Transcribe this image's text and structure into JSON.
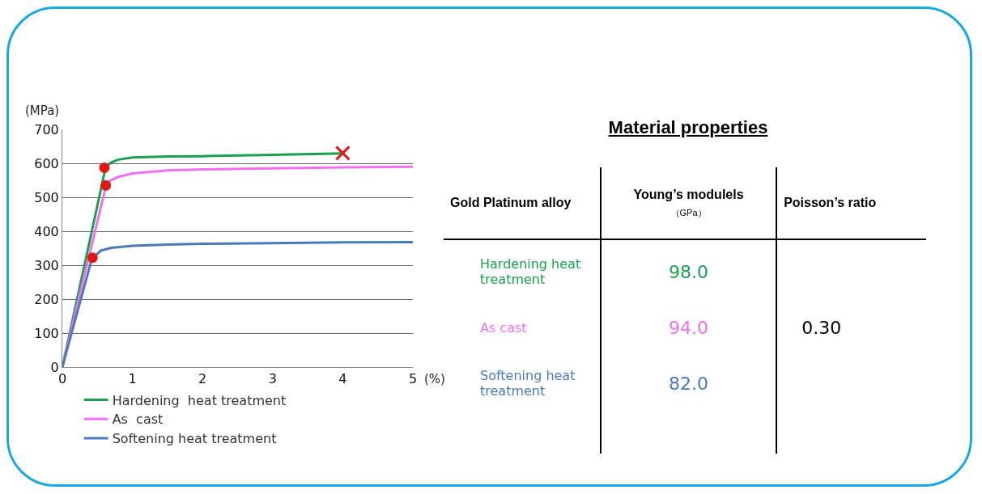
{
  "chart_data": [
    {
      "type": "line",
      "xlabel": "(%)",
      "ylabel": "(MPa)",
      "xlim": [
        0,
        5
      ],
      "xticks": [
        0,
        1,
        2,
        3,
        4,
        5
      ],
      "ylim": [
        0,
        700
      ],
      "yticks": [
        0,
        100,
        200,
        300,
        400,
        500,
        600,
        700
      ],
      "grid": "y",
      "legend": "bottom",
      "marker": "none",
      "line_style": "solid",
      "series": [
        {
          "name": "Hardening  heat treatment",
          "color": "#1aa050",
          "x": [
            0,
            0.62,
            0.7,
            0.8,
            1,
            1.5,
            2,
            3,
            4
          ],
          "values": [
            0,
            590,
            603,
            611,
            617,
            620,
            621,
            625,
            629
          ]
        },
        {
          "name": "As  cast",
          "color": "#f070f0",
          "x": [
            0,
            0.63,
            0.7,
            0.8,
            1,
            1.5,
            2,
            3,
            4,
            5
          ],
          "values": [
            0,
            540,
            551,
            560,
            570,
            579,
            582,
            585,
            588,
            590
          ]
        },
        {
          "name": "Softening heat treatment",
          "color": "#4a7ab8",
          "x": [
            0,
            0.42,
            0.55,
            0.7,
            1,
            1.5,
            2,
            3,
            4,
            5
          ],
          "values": [
            0,
            318,
            343,
            351,
            357,
            361,
            363,
            365,
            367,
            368
          ]
        },
        {
          "type": "scatter",
          "marker": "circle",
          "color": "#e01818",
          "x": [
            0.6,
            0.62,
            0.43
          ],
          "values": [
            587,
            535,
            322
          ]
        },
        {
          "type": "scatter",
          "marker": "cross",
          "color": "#e01818",
          "x": [
            4
          ],
          "values": [
            630
          ]
        }
      ]
    },
    {
      "type": "other",
      "title": "Material properties",
      "annotations": [
        "Gold Platinum alloy",
        "Young’s modulels",
        "（GPa）",
        "Poisson’s ratio",
        "0.30"
      ],
      "categories": [
        "Hardening heat treatment",
        "As  cast",
        "Softening heat treatment"
      ],
      "colors": [
        "#1aa050",
        "#f070f0",
        "#4a7ab8"
      ],
      "value_labels": [
        "98.0",
        "94.0",
        "82.0"
      ]
    }
  ]
}
